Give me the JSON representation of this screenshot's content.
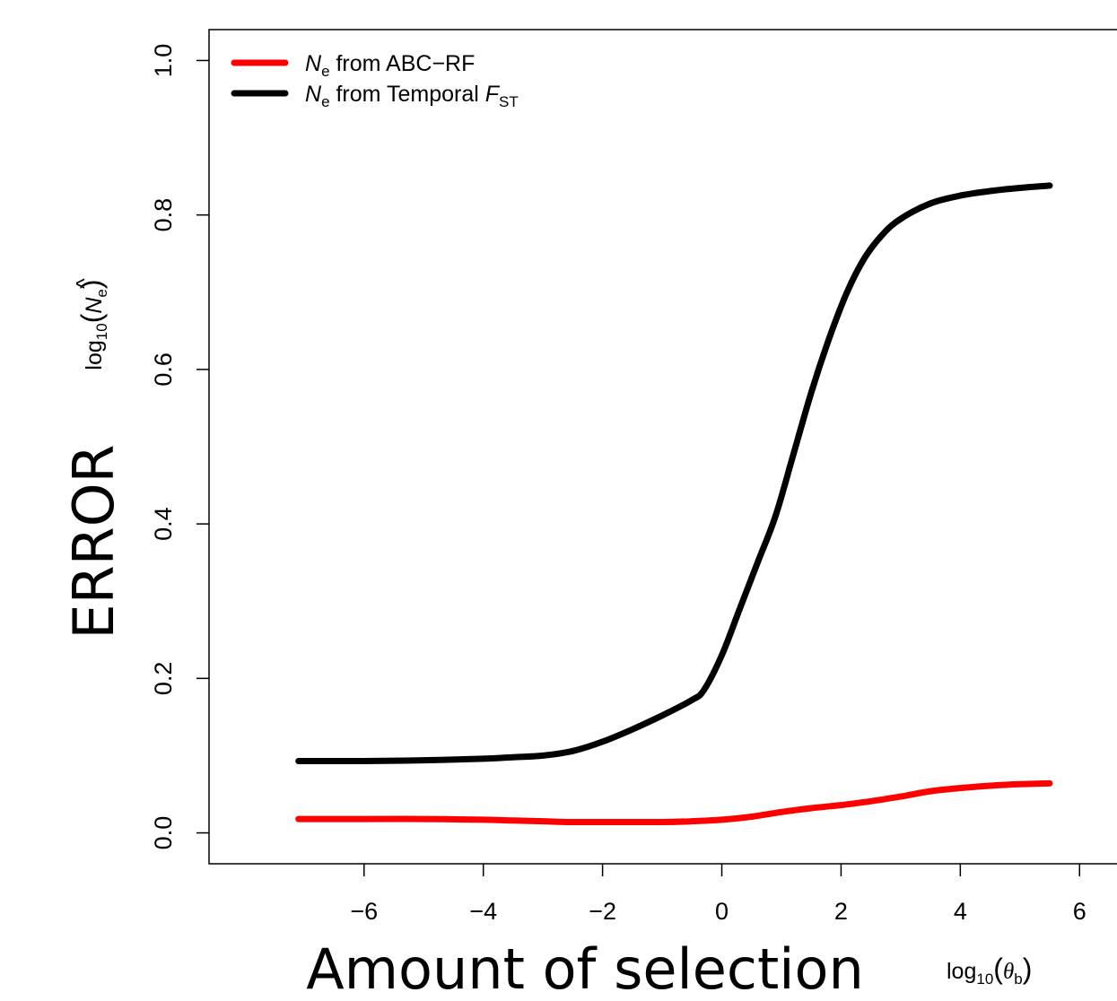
{
  "chart_data": {
    "type": "line",
    "xlabel": "Amount of selection",
    "xlabel_unit": {
      "base": "log",
      "sub": "10",
      "paren_open": "(",
      "symbol": "θ",
      "symbol_sub": "b",
      "paren_close": ")"
    },
    "ylabel": "ERROR",
    "ylabel_unit": {
      "base": "log",
      "sub": "10",
      "paren_open": "(",
      "symbol": "N",
      "hat": "^",
      "symbol_sub": "e",
      "paren_close": ")"
    },
    "xlim": [
      -8.6,
      7.2
    ],
    "ylim": [
      -0.04,
      1.04
    ],
    "x_ticks": [
      -6,
      -4,
      -2,
      0,
      2,
      4,
      6
    ],
    "x_tick_labels": [
      "−6",
      "−4",
      "−2",
      "0",
      "2",
      "4",
      "6"
    ],
    "y_ticks": [
      0.0,
      0.2,
      0.4,
      0.6,
      0.8,
      1.0
    ],
    "y_tick_labels": [
      "0.0",
      "0.2",
      "0.4",
      "0.6",
      "0.8",
      "1.0"
    ],
    "grid": false,
    "legend_position": "top-left",
    "series": [
      {
        "name": "N_e from ABC−RF",
        "legend": {
          "sym": "N",
          "sym_sub": "e",
          "text": " from ABC−RF",
          "sym2": "",
          "sym2_sub": ""
        },
        "color": "#ff0000",
        "x": [
          -7.1,
          -6,
          -5,
          -4,
          -3.5,
          -3,
          -2.5,
          -2,
          -1.5,
          -1,
          -0.5,
          0,
          0.5,
          1,
          1.5,
          2,
          2.5,
          3,
          3.5,
          4,
          4.5,
          5,
          5.5
        ],
        "y": [
          0.018,
          0.018,
          0.018,
          0.017,
          0.016,
          0.015,
          0.014,
          0.014,
          0.014,
          0.014,
          0.015,
          0.017,
          0.021,
          0.027,
          0.032,
          0.036,
          0.041,
          0.047,
          0.054,
          0.058,
          0.061,
          0.063,
          0.064
        ]
      },
      {
        "name": "N_e from Temporal F_ST",
        "legend": {
          "sym": "N",
          "sym_sub": "e",
          "text": " from Temporal ",
          "sym2": "F",
          "sym2_sub": "ST"
        },
        "color": "#000000",
        "x": [
          -7.1,
          -6,
          -5,
          -4,
          -3.5,
          -3,
          -2.5,
          -2,
          -1.5,
          -1,
          -0.5,
          -0.3,
          0,
          0.3,
          0.6,
          0.9,
          1.2,
          1.5,
          1.8,
          2.1,
          2.4,
          2.7,
          3,
          3.5,
          4,
          4.5,
          5,
          5.5
        ],
        "y": [
          0.093,
          0.093,
          0.094,
          0.096,
          0.098,
          0.1,
          0.106,
          0.118,
          0.134,
          0.152,
          0.172,
          0.185,
          0.23,
          0.29,
          0.35,
          0.41,
          0.49,
          0.57,
          0.64,
          0.7,
          0.745,
          0.775,
          0.795,
          0.815,
          0.825,
          0.831,
          0.835,
          0.838
        ]
      }
    ]
  }
}
